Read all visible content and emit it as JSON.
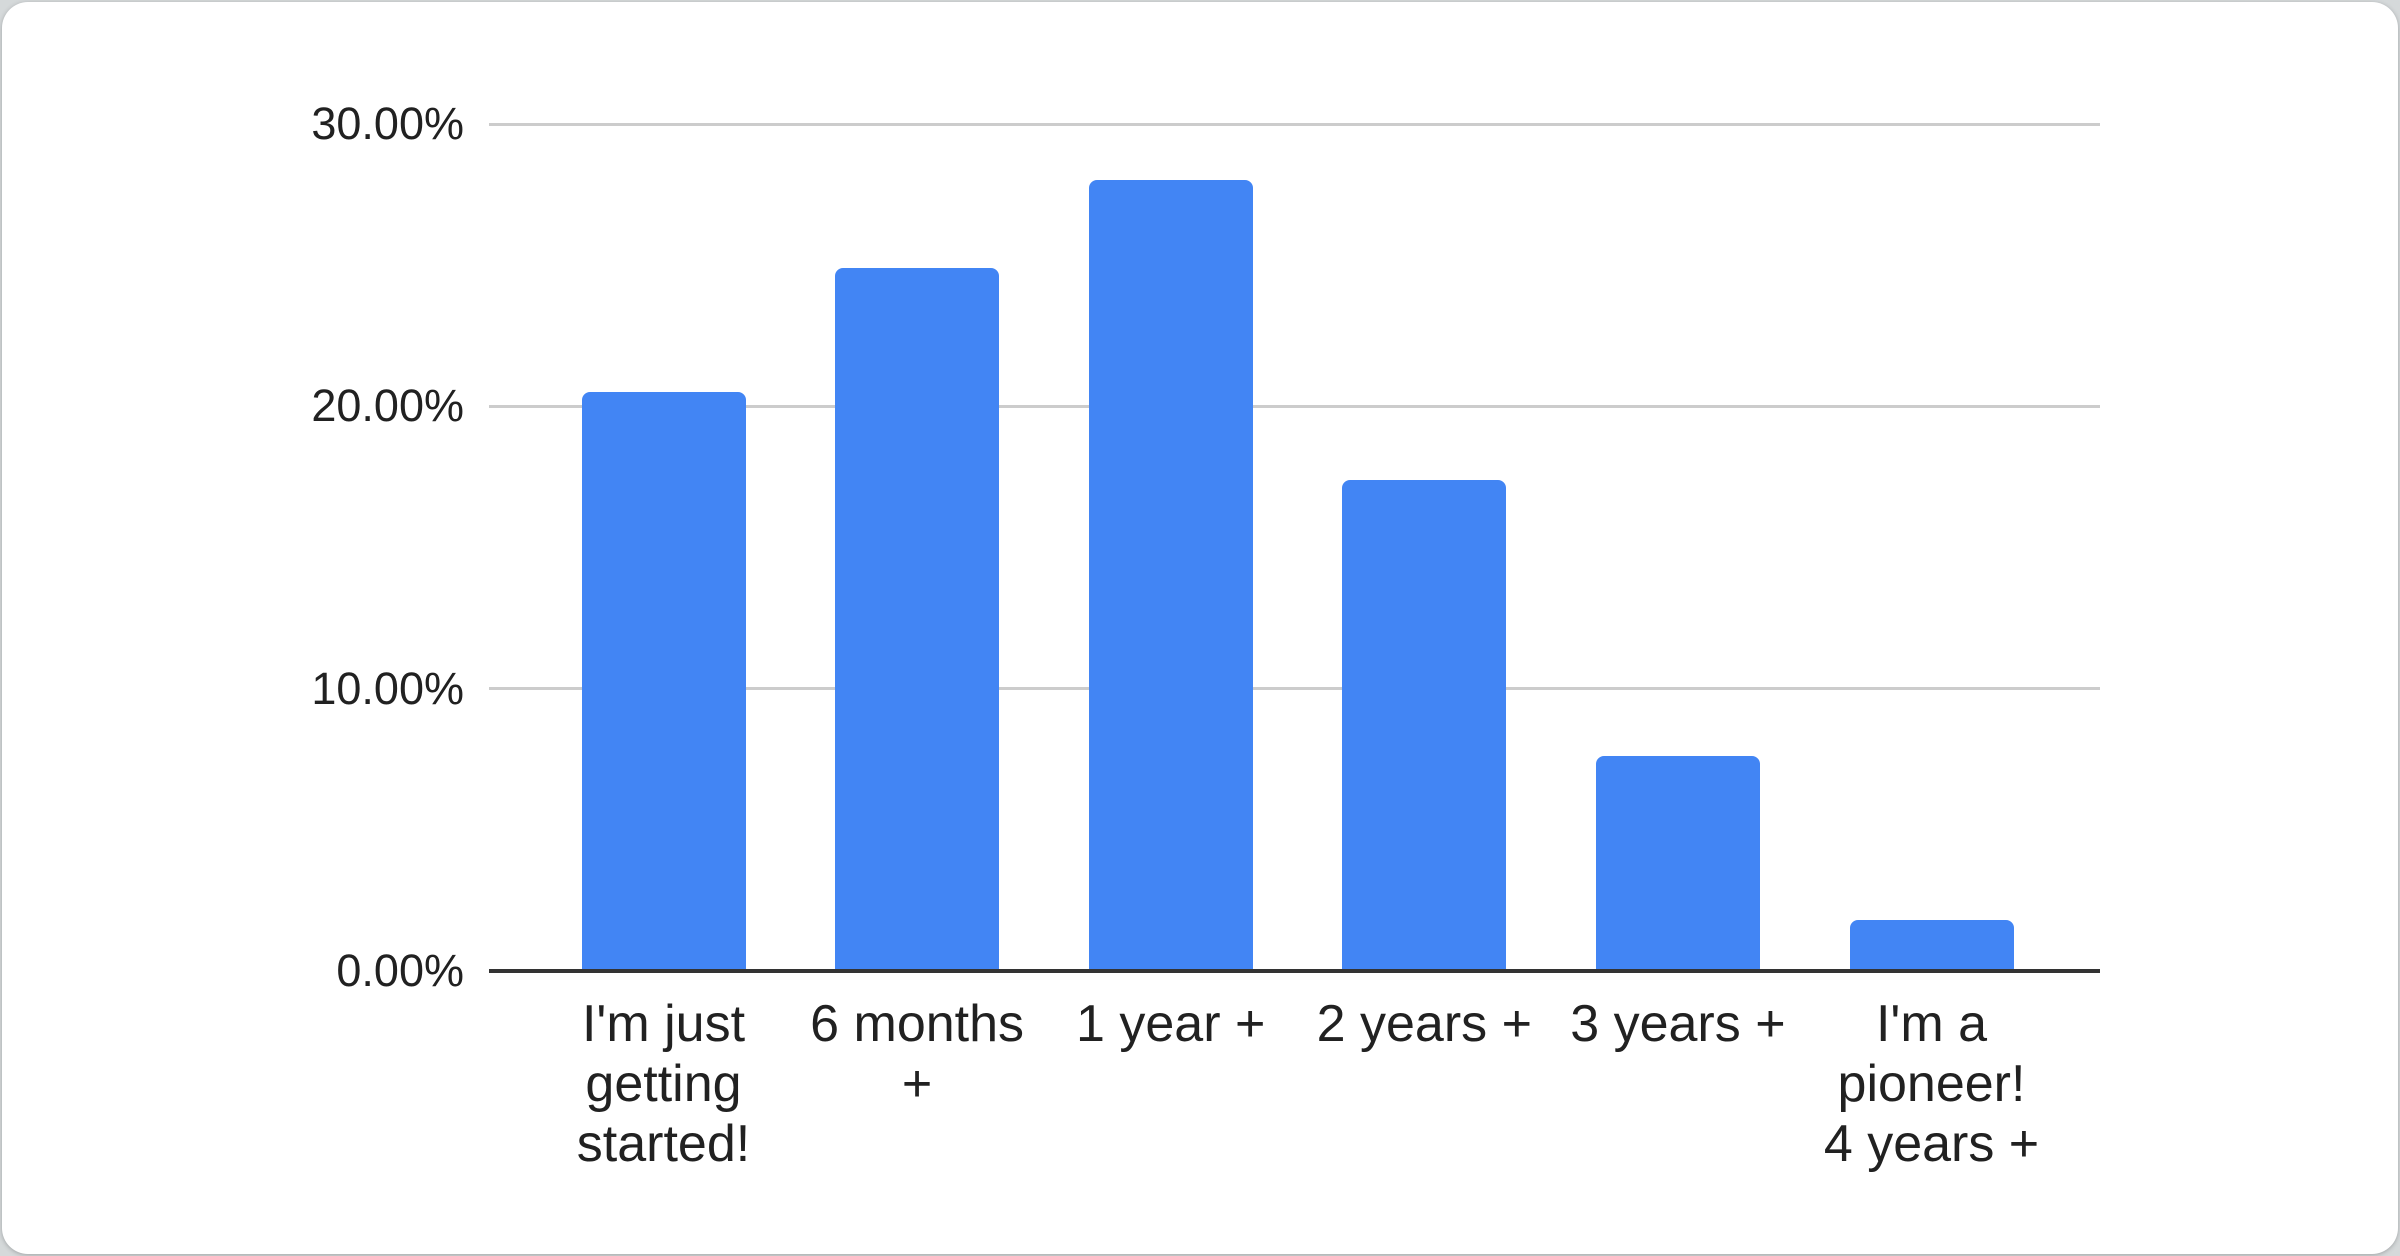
{
  "page": {
    "background_color": "#d5d9da",
    "card_background_color": "#ffffff"
  },
  "chart_data": {
    "type": "bar",
    "title": "",
    "xlabel": "",
    "ylabel": "",
    "categories": [
      "I'm just getting started!",
      "6 months +",
      "1 year +",
      "2 years +",
      "3 years +",
      "I'm a pioneer! 4 years +"
    ],
    "category_display_lines": [
      [
        "I'm just",
        "getting",
        "started!"
      ],
      [
        "6 months",
        "+"
      ],
      [
        "1 year +"
      ],
      [
        "2 years +"
      ],
      [
        "3 years +"
      ],
      [
        "I'm a",
        "pioneer!",
        "4 years +"
      ]
    ],
    "values": [
      20.5,
      24.9,
      28.0,
      17.4,
      7.6,
      1.8
    ],
    "value_unit": "percent",
    "ylim": [
      0,
      30
    ],
    "y_ticks": [
      {
        "label": "0.00%",
        "value": 0
      },
      {
        "label": "10.00%",
        "value": 10
      },
      {
        "label": "20.00%",
        "value": 20
      },
      {
        "label": "30.00%",
        "value": 30
      }
    ],
    "grid": true,
    "legend_position": "none",
    "colors": {
      "bar": "#4285f4",
      "gridline": "#cccccc",
      "axis_line": "#333333",
      "label_text": "#212121"
    }
  }
}
